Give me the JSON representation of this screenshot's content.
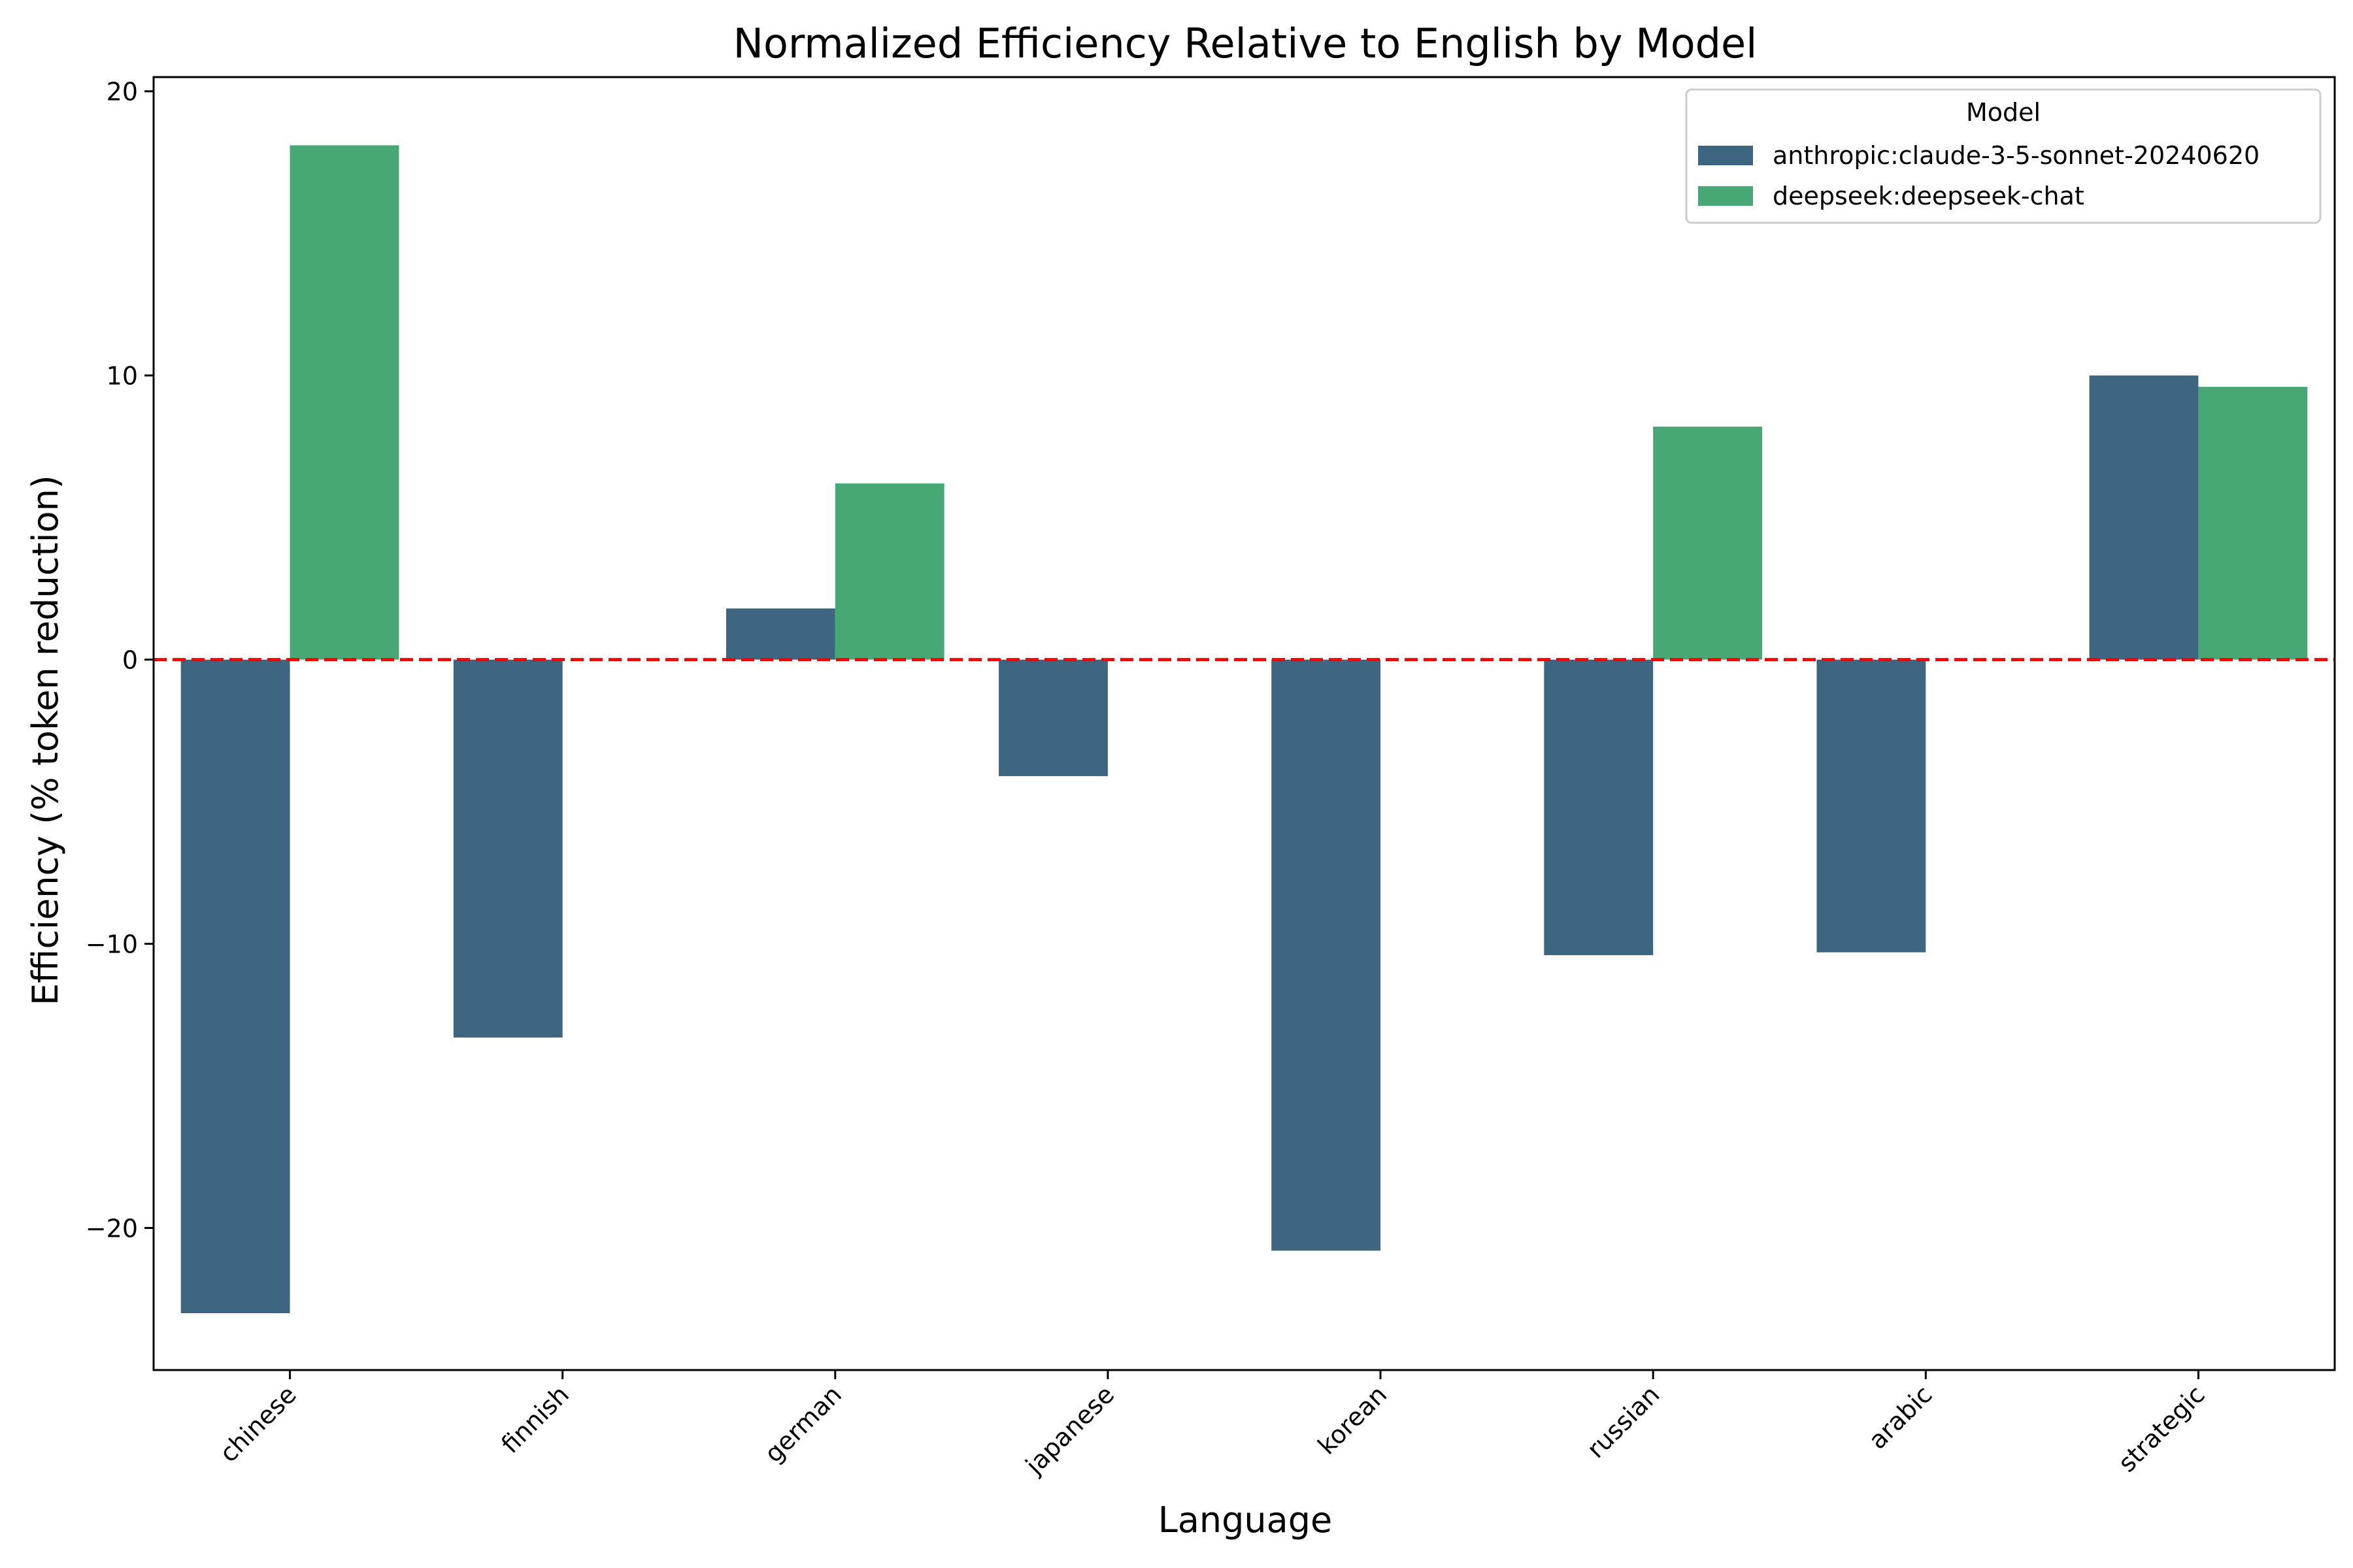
{
  "chart_data": {
    "type": "bar",
    "title": "Normalized Efficiency Relative to English by Model",
    "xlabel": "Language",
    "ylabel": "Efficiency (% token reduction)",
    "categories": [
      "chinese",
      "finnish",
      "german",
      "japanese",
      "korean",
      "russian",
      "arabic",
      "strategic"
    ],
    "series": [
      {
        "name": "anthropic:claude-3-5-sonnet-20240620",
        "color": "#3e6680",
        "values": [
          -23.0,
          -13.3,
          1.8,
          -4.1,
          -20.8,
          -10.4,
          -10.3,
          10.0
        ]
      },
      {
        "name": "deepseek:deepseek-chat",
        "color": "#47a876",
        "values": [
          18.1,
          null,
          6.2,
          null,
          null,
          8.2,
          null,
          9.6
        ]
      }
    ],
    "ylim": [
      -25,
      20.5
    ],
    "yticks": [
      20,
      10,
      0,
      -10,
      -20
    ],
    "ytick_labels": [
      "20",
      "10",
      "0",
      "−10",
      "−20"
    ],
    "reference_line": {
      "value": 0,
      "color": "#ff0000",
      "style": "dashed"
    },
    "legend": {
      "title": "Model",
      "placement": "top-right"
    },
    "grid": false
  }
}
